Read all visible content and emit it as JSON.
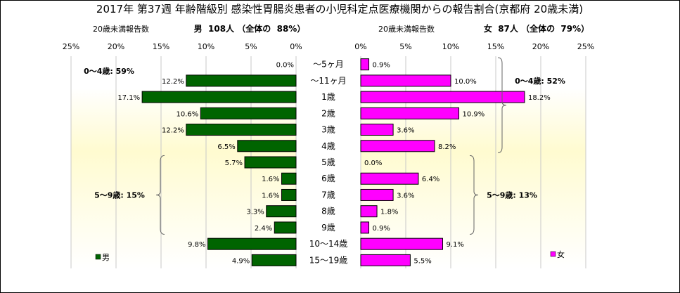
{
  "title": "2017年 第37週 年齢階級別 感染性胃腸炎患者の小児科定点医療機関からの報告割合(京都府 20歳未満)",
  "chart_data": {
    "type": "bar",
    "orientation": "horizontal",
    "categories": [
      "～5ヶ月",
      "～11ヶ月",
      "1歳",
      "2歳",
      "3歳",
      "4歳",
      "5歳",
      "6歳",
      "7歳",
      "8歳",
      "9歳",
      "10～14歳",
      "15～19歳"
    ],
    "left_panel": {
      "header_label": "20歳未満報告数",
      "header_summary": "男  108人 （全体の  88%）",
      "ticks": [
        "25%",
        "20%",
        "15%",
        "10%",
        "5%",
        "0%"
      ],
      "xlim": [
        0,
        25
      ],
      "direction": "reversed",
      "series": [
        {
          "name": "男",
          "color": "#006400",
          "values": [
            0.0,
            12.2,
            17.1,
            10.6,
            12.2,
            6.5,
            5.7,
            1.6,
            1.6,
            3.3,
            2.4,
            9.8,
            4.9
          ]
        }
      ],
      "value_labels": [
        "0.0%",
        "12.2%",
        "17.1%",
        "10.6%",
        "12.2%",
        "6.5%",
        "5.7%",
        "1.6%",
        "1.6%",
        "3.3%",
        "2.4%",
        "9.8%",
        "4.9%"
      ],
      "groups": [
        {
          "label": "0～4歳: 59%",
          "from_category": 1,
          "to_category": 5
        },
        {
          "label": "5～9歳: 15%",
          "from_category": 6,
          "to_category": 10
        }
      ],
      "legend": "男",
      "legend_position": "bottom-left"
    },
    "right_panel": {
      "header_label": "20歳未満報告数",
      "header_summary": "女  87人 （全体の  79%）",
      "ticks": [
        "0%",
        "5%",
        "10%",
        "15%",
        "20%",
        "25%"
      ],
      "xlim": [
        0,
        25
      ],
      "direction": "normal",
      "series": [
        {
          "name": "女",
          "color": "#ff00ff",
          "values": [
            0.9,
            10.0,
            18.2,
            10.9,
            3.6,
            8.2,
            0.0,
            6.4,
            3.6,
            1.8,
            0.9,
            9.1,
            5.5
          ]
        }
      ],
      "value_labels": [
        "0.9%",
        "10.0%",
        "18.2%",
        "10.9%",
        "3.6%",
        "8.2%",
        "0.0%",
        "6.4%",
        "3.6%",
        "1.8%",
        "0.9%",
        "9.1%",
        "5.5%"
      ],
      "groups": [
        {
          "label": "0～4歳: 52%",
          "from_category": 0,
          "to_category": 5
        },
        {
          "label": "5～9歳: 13%",
          "from_category": 6,
          "to_category": 10
        }
      ],
      "legend": "女",
      "legend_position": "bottom-right"
    },
    "grid": true,
    "colors": {
      "male": "#006400",
      "female": "#ff00ff",
      "plot_gradient_top": "#fffde0",
      "plot_gradient_mid": "#ffffff"
    }
  }
}
